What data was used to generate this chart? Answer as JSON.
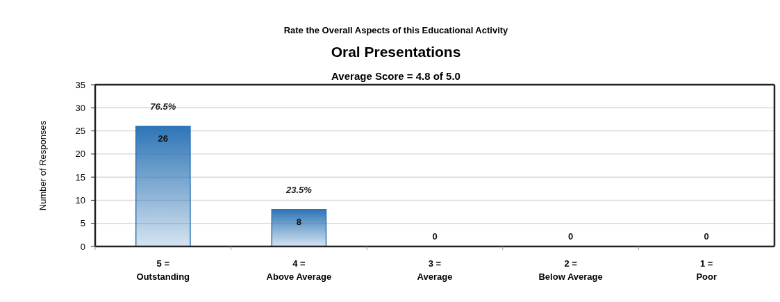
{
  "chart_data": {
    "type": "bar",
    "title": "Oral Presentations",
    "subtitle": "Rate the Overall Aspects of this Educational Activity",
    "annotations": [
      "Average Score = 4.8 of 5.0",
      "76.5%",
      "23.5%"
    ],
    "ylabel": "Number of Responses",
    "categories": [
      "5 =\nOutstanding",
      "4 =\nAbove Average",
      "3 =\nAverage",
      "2 =\nBelow Average",
      "1 =\nPoor"
    ],
    "values": [
      26,
      8,
      0,
      0,
      0
    ],
    "color": "#2e75b6",
    "data_labels": true,
    "ylim": [
      0,
      35
    ],
    "yticks": [
      0,
      5,
      10,
      15,
      20,
      25,
      30,
      35
    ],
    "grid": "y"
  }
}
